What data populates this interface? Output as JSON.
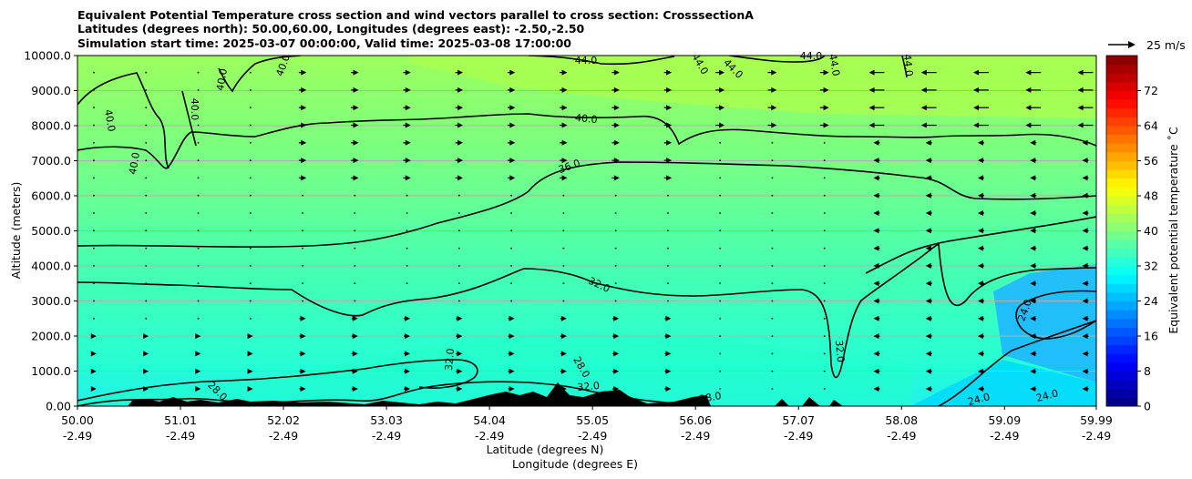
{
  "title_lines": [
    "Equivalent Potential Temperature cross section and wind vectors parallel to cross section: CrosssectionA",
    "Latitudes (degrees north): 50.00,60.00, Longitudes (degrees east): -2.50,-2.50",
    "Simulation start time: 2025-03-07 00:00:00, Valid time: 2025-03-08 17:00:00"
  ],
  "chart_data": {
    "type": "heatmap",
    "title": "Equivalent Potential Temperature cross section and wind vectors parallel to cross section: CrosssectionA",
    "ylabel": "Altitude (meters)",
    "xlabel_lines": [
      "Latitude (degrees N)",
      "Longitude (degrees E)"
    ],
    "ylim": [
      0,
      10000
    ],
    "xlim": [
      50.0,
      59.99
    ],
    "y_ticks": [
      "0.00",
      "1000.0",
      "2000.0",
      "3000.0",
      "4000.0",
      "5000.0",
      "6000.0",
      "7000.0",
      "8000.0",
      "9000.0",
      "10000.0"
    ],
    "y_tick_values": [
      0,
      1000,
      2000,
      3000,
      4000,
      5000,
      6000,
      7000,
      8000,
      9000,
      10000
    ],
    "x_ticks": [
      {
        "lat": "50.00",
        "lon": "-2.49",
        "value": 50.0
      },
      {
        "lat": "51.01",
        "lon": "-2.49",
        "value": 51.01
      },
      {
        "lat": "52.02",
        "lon": "-2.49",
        "value": 52.02
      },
      {
        "lat": "53.03",
        "lon": "-2.49",
        "value": 53.03
      },
      {
        "lat": "54.04",
        "lon": "-2.49",
        "value": 54.04
      },
      {
        "lat": "55.05",
        "lon": "-2.49",
        "value": 55.05
      },
      {
        "lat": "56.06",
        "lon": "-2.49",
        "value": 56.06
      },
      {
        "lat": "57.07",
        "lon": "-2.49",
        "value": 57.07
      },
      {
        "lat": "58.08",
        "lon": "-2.49",
        "value": 58.08
      },
      {
        "lat": "59.09",
        "lon": "-2.49",
        "value": 59.09
      },
      {
        "lat": "59.99",
        "lon": "-2.49",
        "value": 59.99
      }
    ],
    "grid": true,
    "colorbar": {
      "label": "Equivalent potential temperature ˚C",
      "range": [
        0,
        80
      ],
      "ticks": [
        "0",
        "8",
        "16",
        "24",
        "32",
        "40",
        "48",
        "56",
        "64",
        "72"
      ],
      "tick_values": [
        0,
        8,
        16,
        24,
        32,
        40,
        48,
        56,
        64,
        72
      ],
      "colormap": "jet"
    },
    "quiver_key": "25 m/s",
    "contour_lines": [
      {
        "level": 24.0,
        "label": "24.0"
      },
      {
        "level": 28.0,
        "label": "28.0"
      },
      {
        "level": 32.0,
        "label": "32.0"
      },
      {
        "level": 36.0,
        "label": "36.0"
      },
      {
        "level": 40.0,
        "label": "40.0"
      },
      {
        "level": 44.0,
        "label": "44.0"
      }
    ],
    "field_rows": [
      {
        "altitude": 9500,
        "values": [
          40,
          40,
          41,
          41,
          41,
          42,
          42,
          42,
          43,
          43,
          43
        ]
      },
      {
        "altitude": 8000,
        "values": [
          39,
          39,
          39,
          40,
          40,
          40,
          41,
          41,
          41,
          41,
          41
        ]
      },
      {
        "altitude": 6500,
        "values": [
          38,
          38,
          38,
          38,
          37,
          37,
          36,
          36,
          35,
          35,
          34
        ]
      },
      {
        "altitude": 5000,
        "values": [
          36,
          36,
          35,
          35,
          34,
          34,
          33,
          33,
          32,
          31,
          30
        ]
      },
      {
        "altitude": 3500,
        "values": [
          34,
          33,
          33,
          32,
          32,
          31,
          31,
          30,
          29,
          26,
          22
        ]
      },
      {
        "altitude": 2000,
        "values": [
          32,
          31,
          30,
          29,
          29,
          29,
          30,
          29,
          28,
          25,
          22
        ]
      },
      {
        "altitude": 500,
        "values": [
          30,
          29,
          28,
          27,
          26,
          27,
          27,
          26,
          25,
          24,
          23
        ]
      }
    ]
  }
}
